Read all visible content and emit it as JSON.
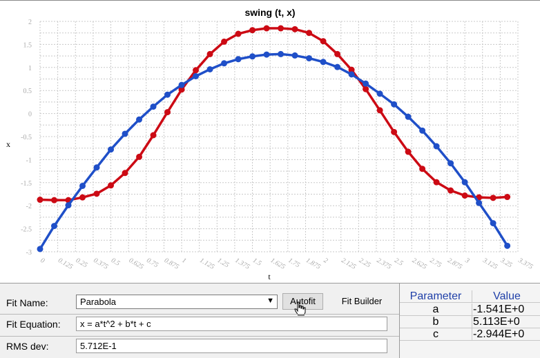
{
  "chart_data": {
    "type": "scatter",
    "title": "swing (t, x)",
    "xlabel": "t",
    "ylabel": "x",
    "xlim": [
      0,
      3.375
    ],
    "ylim": [
      -3,
      2
    ],
    "x_ticks": [
      "0",
      "0.125",
      "0.25",
      "0.375",
      "0.5",
      "0.625",
      "0.75",
      "0.875",
      "1",
      "1.125",
      "1.25",
      "1.375",
      "1.5",
      "1.625",
      "1.75",
      "1.875",
      "2",
      "2.125",
      "2.25",
      "2.375",
      "2.5",
      "2.625",
      "2.75",
      "2.875",
      "3",
      "3.125",
      "3.25",
      "3.375"
    ],
    "y_ticks": [
      "2",
      "1.5",
      "1",
      "0.5",
      "0",
      "-0.5",
      "-1",
      "-1.5",
      "-2",
      "-2.5",
      "-3"
    ],
    "grid": true,
    "series": [
      {
        "color": "#cc0a14",
        "style": "points-with-line",
        "x": [
          0,
          0.1,
          0.2,
          0.3,
          0.4,
          0.5,
          0.6,
          0.7,
          0.8,
          0.9,
          1.0,
          1.1,
          1.2,
          1.3,
          1.4,
          1.5,
          1.6,
          1.7,
          1.8,
          1.9,
          2.0,
          2.1,
          2.2,
          2.3,
          2.4,
          2.5,
          2.6,
          2.7,
          2.8,
          2.9,
          3.0,
          3.1,
          3.2,
          3.3
        ],
        "y": [
          -1.87,
          -1.88,
          -1.88,
          -1.82,
          -1.74,
          -1.56,
          -1.29,
          -0.94,
          -0.47,
          0.03,
          0.52,
          0.94,
          1.29,
          1.56,
          1.73,
          1.81,
          1.85,
          1.85,
          1.83,
          1.75,
          1.57,
          1.29,
          0.95,
          0.53,
          0.07,
          -0.4,
          -0.83,
          -1.2,
          -1.49,
          -1.67,
          -1.78,
          -1.82,
          -1.83,
          -1.81
        ]
      },
      {
        "color": "#1f4fc8",
        "style": "points-with-line",
        "x": [
          0,
          0.1,
          0.2,
          0.3,
          0.4,
          0.5,
          0.6,
          0.7,
          0.8,
          0.9,
          1.0,
          1.1,
          1.2,
          1.3,
          1.4,
          1.5,
          1.6,
          1.7,
          1.8,
          1.9,
          2.0,
          2.1,
          2.2,
          2.3,
          2.4,
          2.5,
          2.6,
          2.7,
          2.8,
          2.9,
          3.0,
          3.1,
          3.2,
          3.3
        ],
        "y": [
          -2.94,
          -2.44,
          -1.99,
          -1.57,
          -1.17,
          -0.78,
          -0.44,
          -0.13,
          0.15,
          0.41,
          0.62,
          0.81,
          0.96,
          1.09,
          1.18,
          1.24,
          1.28,
          1.29,
          1.26,
          1.2,
          1.12,
          1.01,
          0.85,
          0.65,
          0.43,
          0.2,
          -0.07,
          -0.37,
          -0.71,
          -1.08,
          -1.49,
          -1.94,
          -2.38,
          -2.87
        ]
      }
    ]
  },
  "fit_panel": {
    "fit_name_label": "Fit Name:",
    "fit_name_value": "Parabola",
    "autofit_label": "Autofit",
    "fit_builder_label": "Fit Builder",
    "fit_equation_label": "Fit Equation:",
    "fit_equation_value": "x = a*t^2 + b*t + c",
    "rms_label": "RMS dev:",
    "rms_value": "5.712E-1"
  },
  "parameters": {
    "header_param": "Parameter",
    "header_value": "Value",
    "rows": [
      {
        "name": "a",
        "value": "-1.541E+0"
      },
      {
        "name": "b",
        "value": "5.113E+0"
      },
      {
        "name": "c",
        "value": "-2.944E+0"
      }
    ]
  }
}
